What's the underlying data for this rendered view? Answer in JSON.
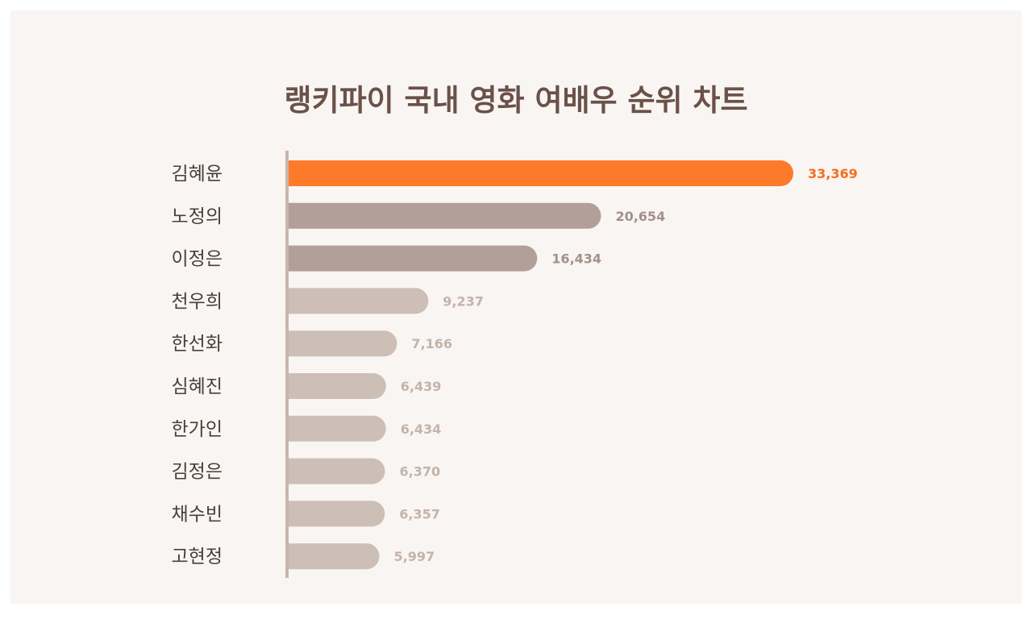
{
  "chart_data": {
    "type": "bar",
    "orientation": "horizontal",
    "title": "랭키파이 국내 영화 여배우 순위 차트",
    "categories": [
      "김혜윤",
      "노정의",
      "이정은",
      "천우희",
      "한선화",
      "심혜진",
      "한가인",
      "김정은",
      "채수빈",
      "고현정"
    ],
    "values": [
      33369,
      20654,
      16434,
      9237,
      7166,
      6439,
      6434,
      6370,
      6357,
      5997
    ],
    "value_labels": [
      "33,369",
      "20,654",
      "16,434",
      "9,237",
      "7,166",
      "6,439",
      "6,434",
      "6,370",
      "6,357",
      "5,997"
    ],
    "xlim": [
      0,
      33369
    ],
    "grid": false,
    "legend": "none",
    "colors": {
      "rank1_bar": "#fd7a2a",
      "rank1_label": "#f2701e",
      "rank2_3_bar": "#b2a098",
      "rank2_3_label": "#a39189",
      "rest_bar": "#cdbeb6",
      "rest_label": "#c4b3aa",
      "axis": "#c6b6ad",
      "title": "#6a5149",
      "background": "#f9f5f3"
    }
  }
}
